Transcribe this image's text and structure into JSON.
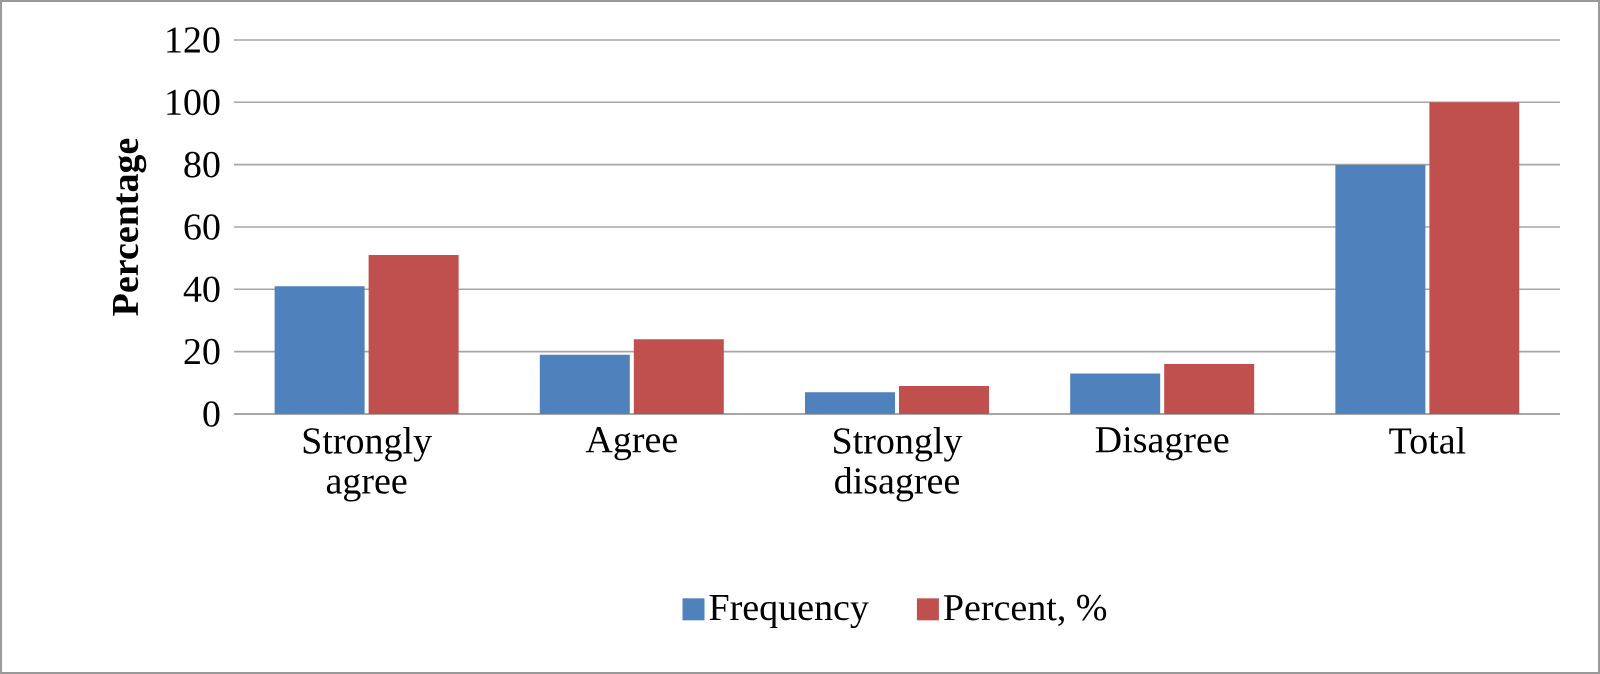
{
  "chart_data": {
    "type": "bar",
    "ylabel": "Percentage",
    "categories": [
      "Strongly agree",
      "Agree",
      "Strongly disagree",
      "Disagree",
      "Total"
    ],
    "series": [
      {
        "name": "Frequency",
        "color": "#4f81bd",
        "values": [
          41,
          19,
          7,
          13,
          80
        ]
      },
      {
        "name": "Percent, %",
        "color": "#c0504d",
        "values": [
          51,
          24,
          9,
          16,
          100
        ]
      }
    ],
    "ylim": [
      0,
      120
    ],
    "yticks": [
      0,
      20,
      40,
      60,
      80,
      100,
      120
    ],
    "grid": "y",
    "legend": "bottom"
  }
}
